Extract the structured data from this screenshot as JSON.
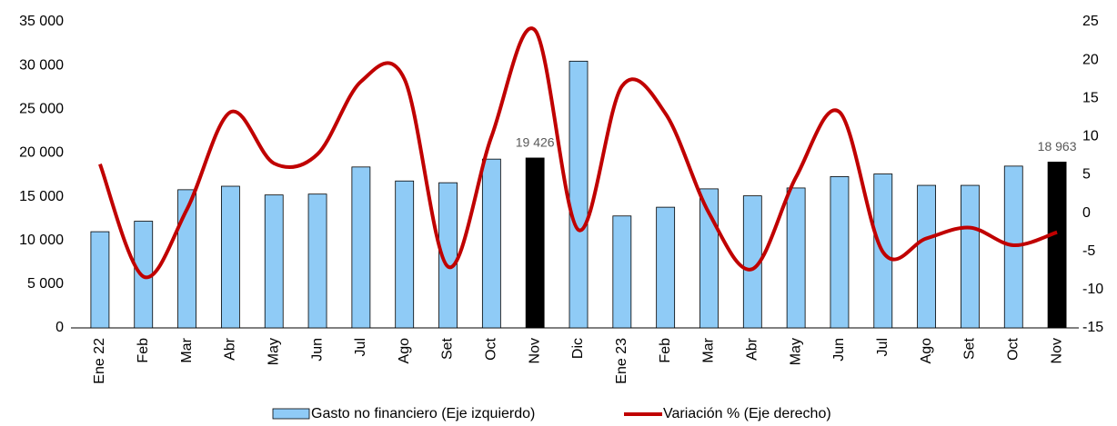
{
  "chart_data": {
    "type": "bar_line",
    "categories": [
      "Ene 22",
      "Feb",
      "Mar",
      "Abr",
      "May",
      "Jun",
      "Jul",
      "Ago",
      "Set",
      "Oct",
      "Nov",
      "Dic",
      "Ene 23",
      "Feb",
      "Mar",
      "Abr",
      "May",
      "Jun",
      "Jul",
      "Ago",
      "Set",
      "Oct",
      "Nov"
    ],
    "series": [
      {
        "name": "Gasto no financiero (Eje izquierdo)",
        "type": "bar",
        "color": "#8fcbf6",
        "colors": [
          "#8fcbf6",
          "#8fcbf6",
          "#8fcbf6",
          "#8fcbf6",
          "#8fcbf6",
          "#8fcbf6",
          "#8fcbf6",
          "#8fcbf6",
          "#8fcbf6",
          "#8fcbf6",
          "#000000",
          "#8fcbf6",
          "#8fcbf6",
          "#8fcbf6",
          "#8fcbf6",
          "#8fcbf6",
          "#8fcbf6",
          "#8fcbf6",
          "#8fcbf6",
          "#8fcbf6",
          "#8fcbf6",
          "#8fcbf6",
          "#000000"
        ],
        "values": [
          11000,
          12200,
          15800,
          16200,
          15200,
          15300,
          18400,
          16800,
          16600,
          19300,
          19426,
          30500,
          12800,
          13800,
          15900,
          15100,
          16000,
          17300,
          17600,
          16300,
          16300,
          18500,
          18963
        ],
        "value_labels": [
          null,
          null,
          null,
          null,
          null,
          null,
          null,
          null,
          null,
          null,
          "19 426",
          null,
          null,
          null,
          null,
          null,
          null,
          null,
          null,
          null,
          null,
          null,
          "18 963"
        ]
      },
      {
        "name": "Variación % (Eje derecho)",
        "type": "line",
        "axis": "y2",
        "color": "#c00000",
        "values": [
          6.4,
          -8.3,
          0.5,
          13.2,
          6.5,
          7.7,
          17.2,
          17.5,
          -7,
          10,
          23.9,
          -2.2,
          16.6,
          13,
          0,
          -7.3,
          4.7,
          13.2,
          -5.1,
          -3.3,
          -1.9,
          -4.2,
          -2.5
        ]
      }
    ],
    "ylim": [
      0,
      35000
    ],
    "yticks": [
      0,
      {
        "value": 5000,
        "label": "5 000"
      },
      {
        "value": 10000,
        "label": "10 000"
      },
      {
        "value": 15000,
        "label": "15 000"
      },
      {
        "value": 20000,
        "label": "20 000"
      },
      {
        "value": 25000,
        "label": "25 000"
      },
      {
        "value": 30000,
        "label": "30 000"
      },
      {
        "value": 35000,
        "label": "35 000"
      }
    ],
    "y2lim": [
      -15,
      25
    ],
    "y2ticks": [
      -15,
      -10,
      -5,
      0,
      5,
      10,
      15,
      20,
      25
    ],
    "legend": "bottom"
  }
}
